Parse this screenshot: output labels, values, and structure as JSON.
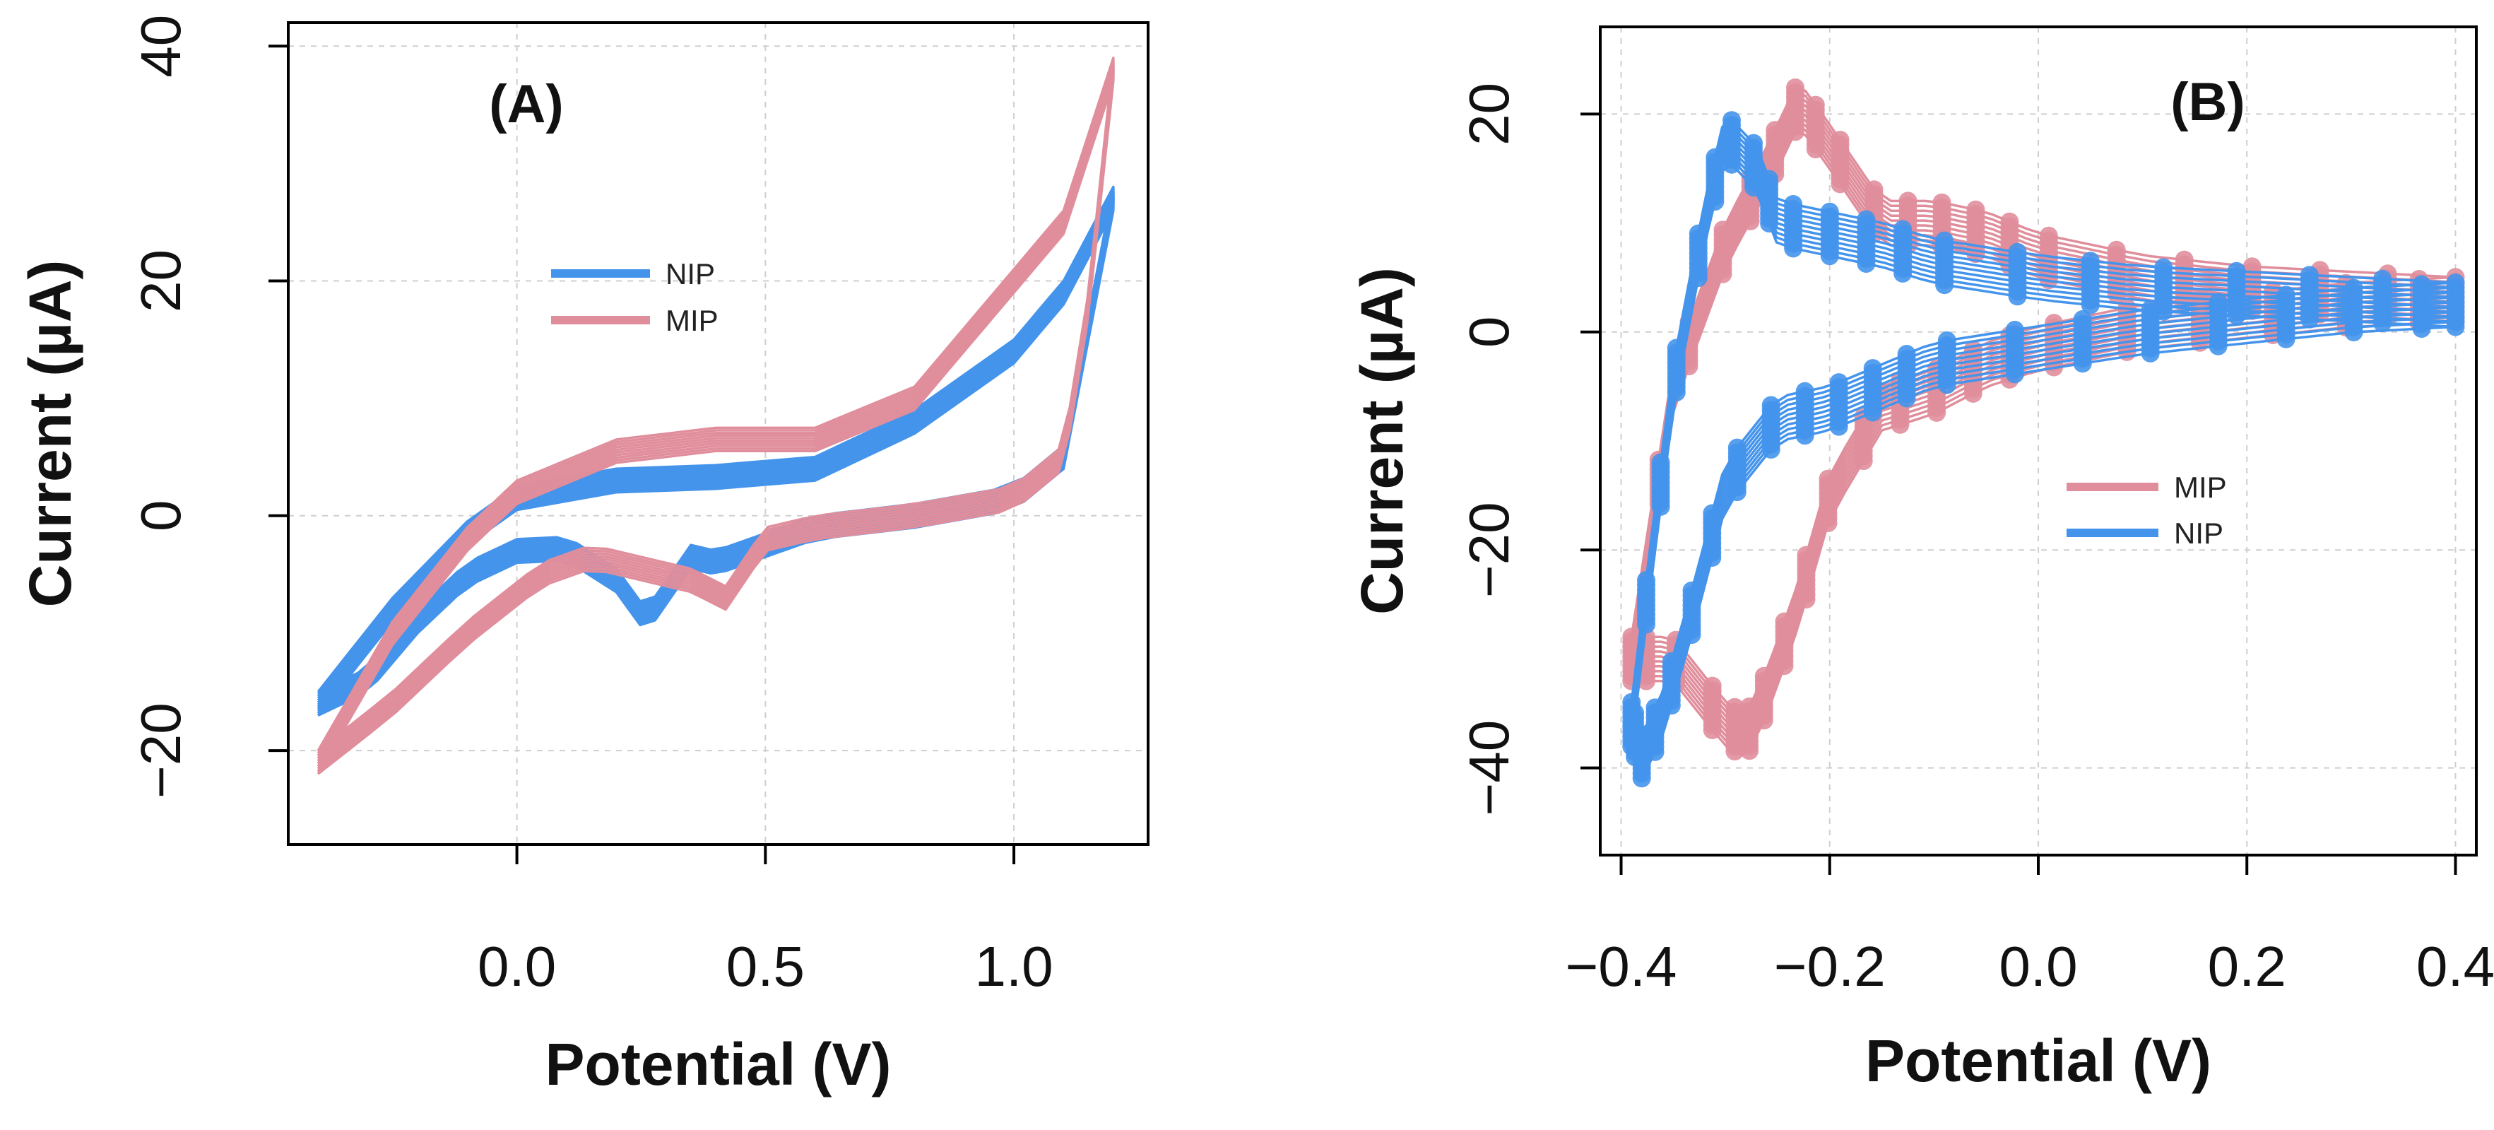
{
  "colors": {
    "NIP": "#4494ec",
    "MIP": "#e08e9c",
    "grid": "#cfcfcf",
    "axis": "#000000"
  },
  "chart_data": [
    {
      "type": "line",
      "panel_label": "(A)",
      "xlabel": "Potential (V)",
      "ylabel": "Current (µA)",
      "xlim": [
        -0.46,
        1.27
      ],
      "ylim": [
        -28,
        42
      ],
      "xticks": [
        0.0,
        0.5,
        1.0
      ],
      "xtick_labels": [
        "0.0",
        "0.5",
        "1.0"
      ],
      "yticks": [
        -20,
        0,
        20,
        40
      ],
      "ytick_labels": [
        "−20",
        "0",
        "20",
        "40"
      ],
      "grid": true,
      "legend_position": "upper-middle",
      "legend": [
        "NIP",
        "MIP"
      ],
      "series": [
        {
          "name": "NIP",
          "color_key": "NIP",
          "anodic": {
            "x": [
              -0.4,
              -0.25,
              -0.1,
              0.0,
              0.2,
              0.4,
              0.6,
              0.8,
              1.0,
              1.1,
              1.2
            ],
            "y": [
              -16,
              -8,
              -1.5,
              1.5,
              3.0,
              3.3,
              4.0,
              8.0,
              14.0,
              19.0,
              27.0
            ]
          },
          "cathodic": {
            "x": [
              1.2,
              1.15,
              1.1,
              1.0,
              0.8,
              0.6,
              0.5,
              0.4,
              0.35,
              0.26,
              0.2,
              0.1,
              0.0,
              -0.1,
              -0.2,
              -0.3,
              -0.4
            ],
            "y": [
              27.0,
              16.0,
              5.0,
              1.5,
              0.0,
              -1.0,
              -2.5,
              -4.0,
              -3.5,
              -9.0,
              -5.5,
              -2.8,
              -3.0,
              -5.0,
              -9.0,
              -14.0,
              -16.0
            ]
          },
          "cycles": 12
        },
        {
          "name": "MIP",
          "color_key": "MIP",
          "anodic": {
            "x": [
              -0.4,
              -0.25,
              -0.1,
              0.0,
              0.2,
              0.4,
              0.6,
              0.8,
              1.0,
              1.1,
              1.2
            ],
            "y": [
              -21,
              -10,
              -2.0,
              2.0,
              5.5,
              6.5,
              6.5,
              10.0,
              20.0,
              25.0,
              38.0
            ]
          },
          "cathodic": {
            "x": [
              1.2,
              1.15,
              1.1,
              1.0,
              0.8,
              0.6,
              0.5,
              0.42,
              0.35,
              0.3,
              0.15,
              0.05,
              -0.1,
              -0.25,
              -0.4
            ],
            "y": [
              38.0,
              18.0,
              5.0,
              1.5,
              0.0,
              -1.0,
              -2.0,
              -7.0,
              -5.5,
              -5.0,
              -3.5,
              -5.0,
              -10.0,
              -16.0,
              -21.0
            ]
          },
          "cycles": 10
        }
      ]
    },
    {
      "type": "line",
      "panel_label": "(B)",
      "xlabel": "Potential (V)",
      "ylabel": "Current (µA)",
      "xlim": [
        -0.42,
        0.42
      ],
      "ylim": [
        -48,
        28
      ],
      "xticks": [
        -0.4,
        -0.2,
        0.0,
        0.2,
        0.4
      ],
      "xtick_labels": [
        "−0.4",
        "−0.2",
        "0.0",
        "0.2",
        "0.4"
      ],
      "yticks": [
        -40,
        -20,
        0,
        20
      ],
      "ytick_labels": [
        "−40",
        "−20",
        "0",
        "20"
      ],
      "grid": true,
      "legend_position": "right-middle",
      "legend": [
        "MIP",
        "NIP"
      ],
      "series": [
        {
          "name": "MIP",
          "color_key": "MIP",
          "anodic": {
            "x": [
              -0.39,
              -0.35,
              -0.3,
              -0.26,
              -0.23,
              -0.2,
              -0.15,
              -0.1,
              -0.05,
              0.0,
              0.1,
              0.2,
              0.3,
              0.4
            ],
            "y": [
              -30,
              -5,
              8,
              15,
              21,
              17,
              10,
              10,
              9,
              7,
              5,
              4,
              3.5,
              3.0
            ]
          },
          "cathodic": {
            "x": [
              0.4,
              0.3,
              0.2,
              0.1,
              0.0,
              -0.05,
              -0.1,
              -0.15,
              -0.2,
              -0.23,
              -0.26,
              -0.28,
              -0.3,
              -0.35,
              -0.39
            ],
            "y": [
              3.0,
              2.5,
              1.5,
              0.5,
              -1.5,
              -3.0,
              -5.5,
              -7.0,
              -15.0,
              -25.0,
              -33.0,
              -37.0,
              -36.0,
              -30.0,
              -30.0
            ]
          },
          "cycles": 10
        },
        {
          "name": "NIP",
          "color_key": "NIP",
          "anodic": {
            "x": [
              -0.39,
              -0.37,
              -0.35,
              -0.32,
              -0.3,
              -0.27,
              -0.25,
              -0.2,
              -0.15,
              -0.1,
              0.0,
              0.1,
              0.2,
              0.3,
              0.4
            ],
            "y": [
              -36,
              -20,
              -5,
              10,
              18,
              15,
              10,
              9,
              8,
              6.5,
              5,
              4,
              3.5,
              3.0,
              2.5
            ]
          },
          "cathodic": {
            "x": [
              0.4,
              0.3,
              0.2,
              0.1,
              0.0,
              -0.1,
              -0.15,
              -0.2,
              -0.25,
              -0.3,
              -0.33,
              -0.36,
              -0.38,
              -0.39
            ],
            "y": [
              2.5,
              2.0,
              1.0,
              0.0,
              -1.5,
              -3.0,
              -5.0,
              -7.0,
              -8.0,
              -14.0,
              -25.0,
              -35.0,
              -39.0,
              -36.0
            ]
          },
          "cycles": 10
        }
      ]
    }
  ]
}
